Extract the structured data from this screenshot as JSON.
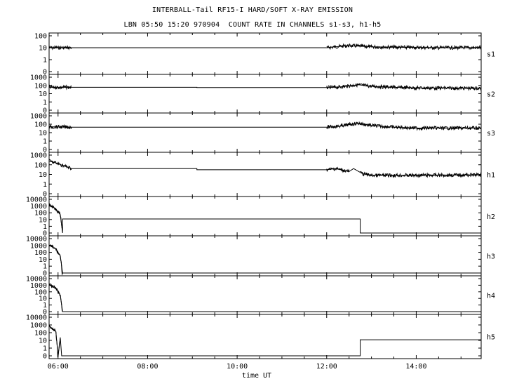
{
  "chart_data": {
    "type": "line",
    "title": "INTERBALL-Tail RF15-I HARD/SOFT X-RAY EMISSION",
    "subtitle": "LBN 05:50 15:20 970904  COUNT RATE IN CHANNELS s1-s3, h1-h5",
    "xlabel": "time UT",
    "xlim": [
      5.8,
      15.45
    ],
    "x_ticks": [
      6,
      8,
      10,
      12,
      14
    ],
    "x_tick_labels": [
      "06:00",
      "08:00",
      "10:00",
      "12:00",
      "14:00"
    ],
    "y_scale": "log",
    "grid": false,
    "panels": [
      {
        "name": "s1",
        "y_tick_labels": [
          "100",
          "10",
          "1",
          "0"
        ],
        "points": [
          [
            5.8,
            10
          ],
          [
            6.3,
            10
          ],
          [
            12.0,
            10
          ],
          [
            12.1,
            11
          ],
          [
            12.3,
            13
          ],
          [
            12.5,
            15
          ],
          [
            13.0,
            12
          ],
          [
            13.5,
            11
          ],
          [
            14.5,
            10
          ],
          [
            15.45,
            10
          ]
        ],
        "noisy_from": [
          [
            5.8,
            6.3
          ],
          [
            12.0,
            15.45
          ]
        ]
      },
      {
        "name": "s2",
        "y_tick_labels": [
          "1000",
          "100",
          "10",
          "1",
          "0"
        ],
        "points": [
          [
            5.8,
            60
          ],
          [
            6.3,
            60
          ],
          [
            9.1,
            60
          ],
          [
            9.1,
            55
          ],
          [
            12.0,
            55
          ],
          [
            12.3,
            65
          ],
          [
            12.5,
            90
          ],
          [
            12.7,
            120
          ],
          [
            13.0,
            80
          ],
          [
            13.5,
            60
          ],
          [
            14.0,
            50
          ],
          [
            15.45,
            45
          ]
        ],
        "noisy_from": [
          [
            5.8,
            6.3
          ],
          [
            12.0,
            15.45
          ]
        ]
      },
      {
        "name": "s3",
        "y_tick_labels": [
          "1000",
          "100",
          "10",
          "1",
          "0"
        ],
        "points": [
          [
            5.8,
            50
          ],
          [
            6.3,
            45
          ],
          [
            12.0,
            45
          ],
          [
            12.3,
            60
          ],
          [
            12.5,
            90
          ],
          [
            12.7,
            130
          ],
          [
            13.0,
            70
          ],
          [
            13.5,
            45
          ],
          [
            14.0,
            35
          ],
          [
            15.45,
            35
          ]
        ],
        "noisy_from": [
          [
            5.8,
            6.3
          ],
          [
            12.0,
            15.45
          ]
        ]
      },
      {
        "name": "h1",
        "y_tick_labels": [
          "1000",
          "100",
          "10",
          "1",
          "0"
        ],
        "points": [
          [
            5.8,
            250
          ],
          [
            5.95,
            150
          ],
          [
            6.2,
            60
          ],
          [
            6.3,
            40
          ],
          [
            9.1,
            40
          ],
          [
            9.1,
            30
          ],
          [
            12.0,
            30
          ],
          [
            12.2,
            40
          ],
          [
            12.5,
            20
          ],
          [
            12.6,
            40
          ],
          [
            12.8,
            12
          ],
          [
            13.0,
            8
          ],
          [
            14.0,
            8
          ],
          [
            15.45,
            9
          ]
        ],
        "noisy_from": [
          [
            5.8,
            6.3
          ],
          [
            12.0,
            12.5
          ],
          [
            12.75,
            15.45
          ]
        ]
      },
      {
        "name": "h2",
        "y_tick_labels": [
          "10000",
          "1000",
          "100",
          "10",
          "1",
          "0"
        ],
        "points": [
          [
            5.8,
            1500
          ],
          [
            5.95,
            400
          ],
          [
            6.05,
            50
          ],
          [
            6.1,
            0
          ],
          [
            6.1,
            12
          ],
          [
            12.75,
            12
          ],
          [
            12.75,
            0
          ],
          [
            15.45,
            0
          ]
        ],
        "noisy_from": [
          [
            5.8,
            6.1
          ]
        ]
      },
      {
        "name": "h3",
        "y_tick_labels": [
          "10000",
          "1000",
          "100",
          "10",
          "1",
          "0"
        ],
        "points": [
          [
            5.8,
            1200
          ],
          [
            5.95,
            300
          ],
          [
            6.05,
            30
          ],
          [
            6.1,
            0
          ],
          [
            15.45,
            0
          ]
        ],
        "noisy_from": [
          [
            5.8,
            6.1
          ]
        ]
      },
      {
        "name": "h4",
        "y_tick_labels": [
          "10000",
          "1000",
          "100",
          "10",
          "1",
          "0"
        ],
        "points": [
          [
            5.8,
            1200
          ],
          [
            5.95,
            300
          ],
          [
            6.05,
            30
          ],
          [
            6.1,
            0
          ],
          [
            15.45,
            0
          ]
        ],
        "noisy_from": [
          [
            5.8,
            6.1
          ]
        ]
      },
      {
        "name": "h5",
        "y_tick_labels": [
          "10000",
          "1000",
          "100",
          "10",
          "1",
          "0"
        ],
        "points": [
          [
            5.8,
            800
          ],
          [
            5.95,
            150
          ],
          [
            6.0,
            0
          ],
          [
            6.05,
            20
          ],
          [
            6.08,
            0
          ],
          [
            12.75,
            0
          ],
          [
            12.75,
            12
          ],
          [
            15.45,
            12
          ]
        ],
        "noisy_from": [
          [
            5.8,
            6.05
          ]
        ]
      }
    ]
  }
}
